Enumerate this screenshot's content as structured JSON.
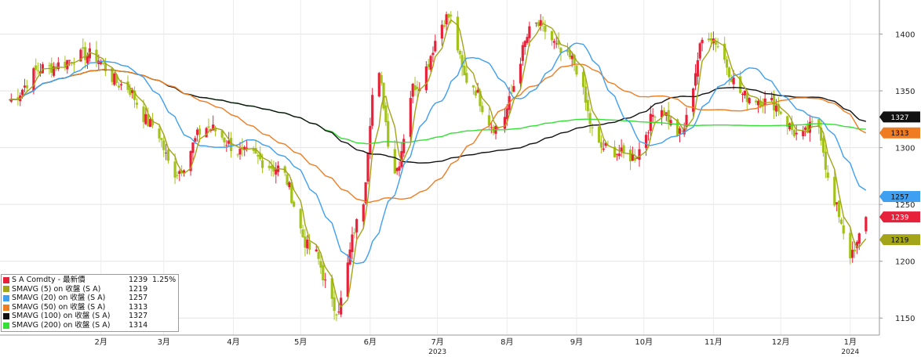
{
  "chart_data": {
    "type": "candlestick-line",
    "title": "",
    "xlabel": "",
    "ylabel": "",
    "ylim": [
      1135,
      1430
    ],
    "y_ticks": [
      1150,
      1200,
      1250,
      1300,
      1350,
      1400
    ],
    "grid": true,
    "x_ticks": [
      {
        "label": "2月",
        "month": "2023-02"
      },
      {
        "label": "3月",
        "month": "2023-03"
      },
      {
        "label": "4月",
        "month": "2023-04"
      },
      {
        "label": "5月",
        "month": "2023-05"
      },
      {
        "label": "6月",
        "month": "2023-06"
      },
      {
        "label": "7月",
        "month": "2023-07"
      },
      {
        "label": "8月",
        "month": "2023-08"
      },
      {
        "label": "9月",
        "month": "2023-09"
      },
      {
        "label": "10月",
        "month": "2023-10"
      },
      {
        "label": "11月",
        "month": "2023-11"
      },
      {
        "label": "12月",
        "month": "2023-12"
      },
      {
        "label": "1月",
        "month": "2024-01"
      }
    ],
    "year_labels": [
      {
        "label": "2023",
        "month": "2023-07"
      },
      {
        "label": "2024",
        "month": "2024-01"
      }
    ],
    "price_key": [
      {
        "date": "2023-01-05",
        "close": 1342
      },
      {
        "date": "2023-01-20",
        "close": 1370
      },
      {
        "date": "2023-02-10",
        "close": 1382
      },
      {
        "date": "2023-02-25",
        "close": 1355
      },
      {
        "date": "2023-03-10",
        "close": 1320
      },
      {
        "date": "2023-03-20",
        "close": 1278
      },
      {
        "date": "2023-04-03",
        "close": 1318
      },
      {
        "date": "2023-04-20",
        "close": 1295
      },
      {
        "date": "2023-05-05",
        "close": 1282
      },
      {
        "date": "2023-05-20",
        "close": 1210
      },
      {
        "date": "2023-05-31",
        "close": 1158
      },
      {
        "date": "2023-06-10",
        "close": 1235
      },
      {
        "date": "2023-06-18",
        "close": 1365
      },
      {
        "date": "2023-06-26",
        "close": 1280
      },
      {
        "date": "2023-07-05",
        "close": 1355
      },
      {
        "date": "2023-07-20",
        "close": 1415
      },
      {
        "date": "2023-07-28",
        "close": 1360
      },
      {
        "date": "2023-08-10",
        "close": 1318
      },
      {
        "date": "2023-08-28",
        "close": 1408
      },
      {
        "date": "2023-09-12",
        "close": 1378
      },
      {
        "date": "2023-09-26",
        "close": 1300
      },
      {
        "date": "2023-10-10",
        "close": 1292
      },
      {
        "date": "2023-10-22",
        "close": 1335
      },
      {
        "date": "2023-10-31",
        "close": 1312
      },
      {
        "date": "2023-11-12",
        "close": 1400
      },
      {
        "date": "2023-11-30",
        "close": 1345
      },
      {
        "date": "2023-12-10",
        "close": 1340
      },
      {
        "date": "2023-12-24",
        "close": 1310
      },
      {
        "date": "2023-12-31",
        "close": 1322
      },
      {
        "date": "2024-01-08",
        "close": 1248
      },
      {
        "date": "2024-01-16",
        "close": 1205
      },
      {
        "date": "2024-01-22",
        "close": 1239
      }
    ],
    "series": [
      {
        "name": "S A Comdty - 最新價",
        "color": "#e8213b",
        "type": "candlestick",
        "last": "1239"
      },
      {
        "name": "SMAVG (5)  on 收盤 (S A)",
        "color": "#a3a418",
        "window": 5,
        "last": "1219"
      },
      {
        "name": "SMAVG (20)  on 收盤 (S A)",
        "color": "#3f9ff0",
        "window": 20,
        "last": "1257"
      },
      {
        "name": "SMAVG (50)  on 收盤 (S A)",
        "color": "#f07c22",
        "window": 50,
        "last": "1313"
      },
      {
        "name": "SMAVG (100)  on 收盤 (S A)",
        "color": "#111111",
        "window": 100,
        "last": "1327"
      },
      {
        "name": "SMAVG (200)  on 收盤 (S A)",
        "color": "#33e033",
        "window": 200,
        "last": "1314"
      }
    ],
    "legend_position": "bottom-left"
  },
  "legend": {
    "rows": [
      {
        "label": "S A Comdty - 最新價",
        "value": "1239",
        "change": "1.25%",
        "color": "#e8213b"
      },
      {
        "label": "SMAVG (5)  on 收盤 (S A)",
        "value": "1219",
        "change": "",
        "color": "#a3a418"
      },
      {
        "label": "SMAVG (20)  on 收盤 (S A)",
        "value": "1257",
        "change": "",
        "color": "#3f9ff0"
      },
      {
        "label": "SMAVG (50)  on 收盤 (S A)",
        "value": "1313",
        "change": "",
        "color": "#f07c22"
      },
      {
        "label": "SMAVG (100)  on 收盤 (S A)",
        "value": "1327",
        "change": "",
        "color": "#111111"
      },
      {
        "label": "SMAVG (200)  on 收盤 (S A)",
        "value": "1314",
        "change": "",
        "color": "#33e033"
      }
    ]
  },
  "value_tags": [
    {
      "name": "sma100",
      "text": "1327",
      "value": 1327,
      "bg": "#111111",
      "fg": "#ffffff"
    },
    {
      "name": "sma50",
      "text": "1313",
      "value": 1313,
      "bg": "#f07c22",
      "fg": "#000000"
    },
    {
      "name": "sma20",
      "text": "1257",
      "value": 1257,
      "bg": "#3f9ff0",
      "fg": "#000000"
    },
    {
      "name": "price",
      "text": "1239",
      "value": 1239,
      "bg": "#e8213b",
      "fg": "#ffffff"
    },
    {
      "name": "sma5",
      "text": "1219",
      "value": 1219,
      "bg": "#a3a418",
      "fg": "#000000"
    }
  ]
}
